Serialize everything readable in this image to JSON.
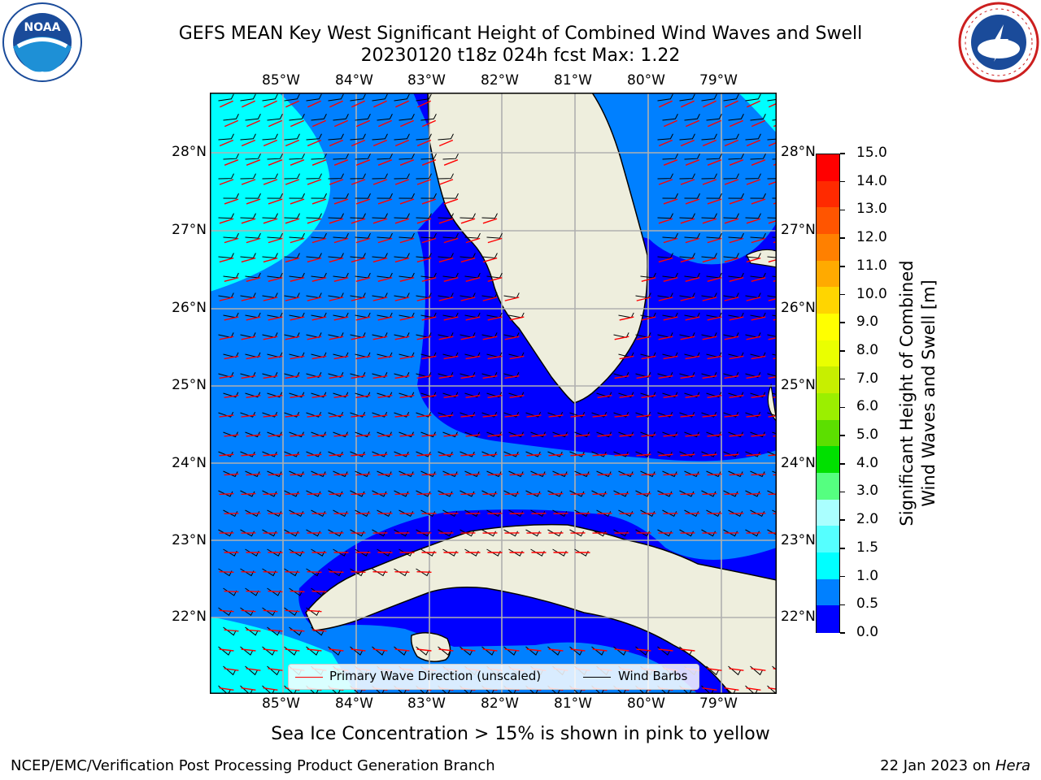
{
  "title": {
    "line1": "GEFS MEAN Key West Significant Height of Combined Wind Waves and Swell",
    "line2": "20230120 t18z 024h fcst   Max: 1.22"
  },
  "map": {
    "lon_labels": [
      "85°W",
      "84°W",
      "83°W",
      "82°W",
      "81°W",
      "80°W",
      "79°W"
    ],
    "lat_labels": [
      "28°N",
      "27°N",
      "26°N",
      "25°N",
      "24°N",
      "23°N",
      "22°N"
    ],
    "legend": {
      "wave_label": "Primary Wave Direction (unscaled)",
      "wind_label": "Wind Barbs",
      "wave_color": "#ff0000",
      "wind_color": "#000000"
    },
    "land_color": "#eeeedd",
    "coast_color": "#000000",
    "grid_color": "#b0b0b0"
  },
  "colorbar": {
    "label_line1": "Significant Height of Combined",
    "label_line2": "Wind Waves and Swell [m]",
    "ticks": [
      "15.0",
      "14.0",
      "13.0",
      "12.0",
      "11.0",
      "10.0",
      "9.0",
      "8.0",
      "7.0",
      "6.0",
      "5.0",
      "4.0",
      "3.0",
      "2.0",
      "1.5",
      "1.0",
      "0.5",
      "0.0"
    ],
    "bands_top_to_bottom": [
      "#ff0000",
      "#ff2a00",
      "#ff5500",
      "#ff8000",
      "#ffaa00",
      "#ffd500",
      "#ffff00",
      "#eaff00",
      "#c7ef00",
      "#9bef00",
      "#5cdf00",
      "#00e000",
      "#55ff80",
      "#aaffff",
      "#55ffff",
      "#00ffff",
      "#0080ff",
      "#0000ff"
    ]
  },
  "subtitle": "Sea Ice Concentration > 15% is shown in pink to yellow",
  "footer": {
    "left": "NCEP/EMC/Verification Post Processing Product Generation Branch",
    "date": "22 Jan 2023 on ",
    "host": "Hera"
  },
  "logos": {
    "noaa": "NOAA",
    "nws_ring": "NATIONAL WEATHER SERVICE"
  }
}
